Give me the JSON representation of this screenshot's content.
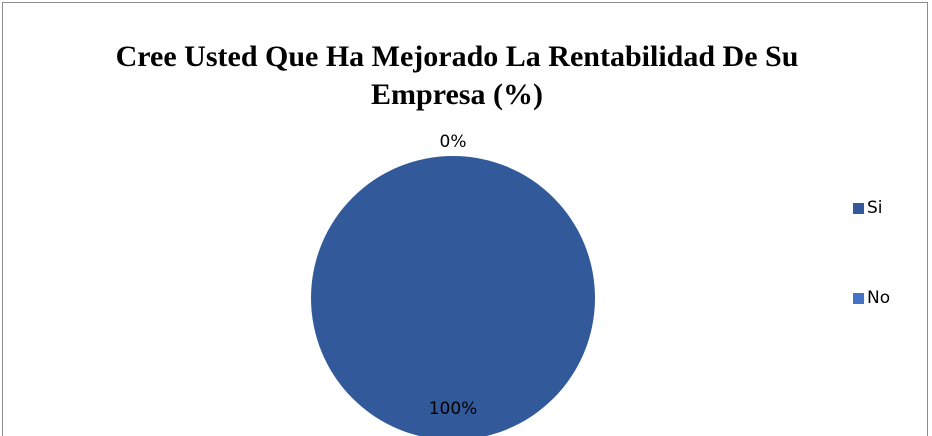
{
  "chart_data": {
    "type": "pie",
    "title": "Cree Usted Que Ha Mejorado La Rentabilidad De Su Empresa (%)",
    "categories": [
      "Si",
      "No"
    ],
    "values": [
      100,
      0
    ],
    "value_labels": [
      "100%",
      "0%"
    ],
    "colors": [
      "#325a9a",
      "#4472c4"
    ],
    "legend": "right"
  }
}
